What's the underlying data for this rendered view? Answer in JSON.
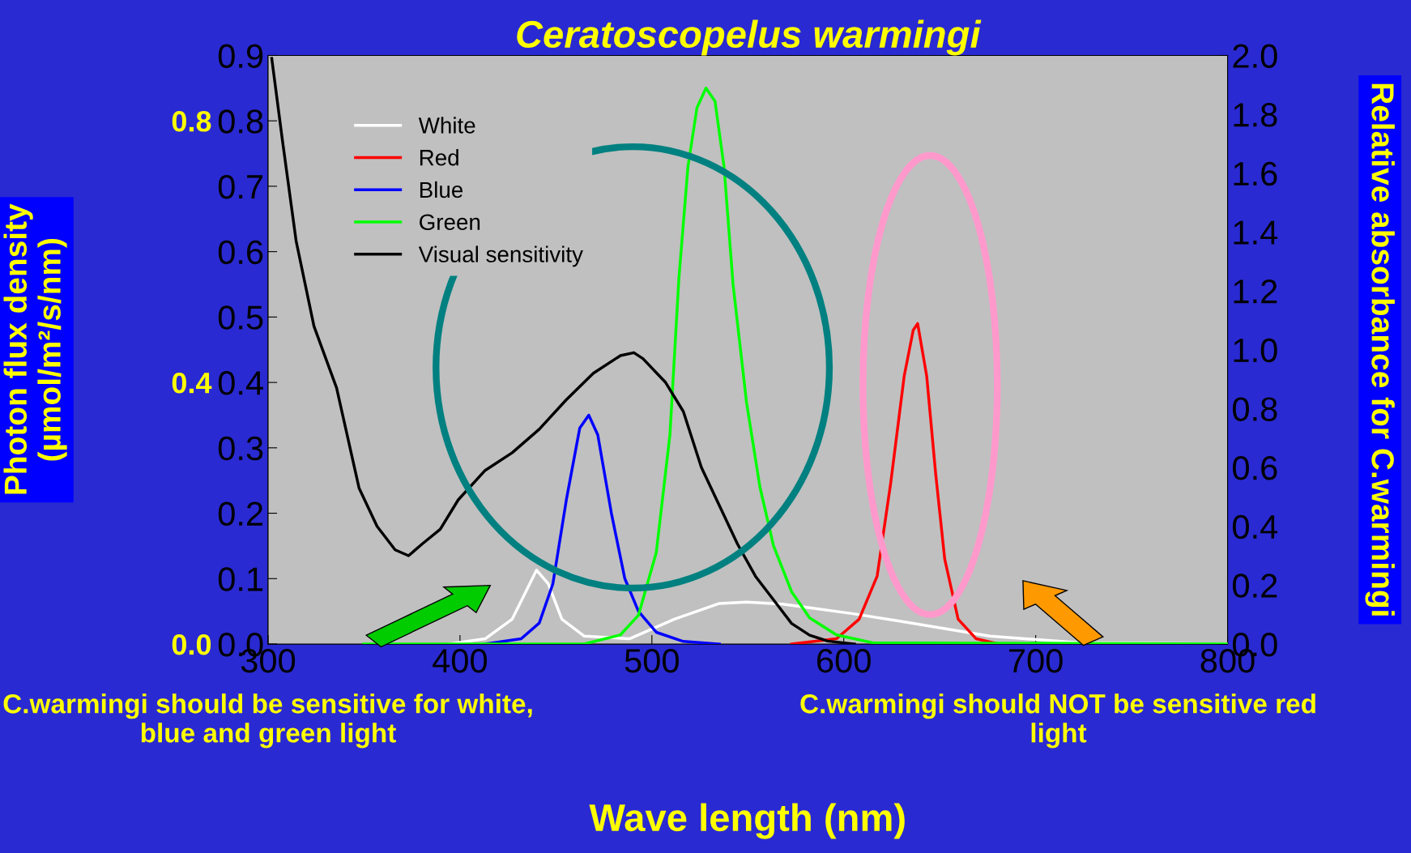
{
  "chart_data": {
    "type": "line",
    "title": "Ceratoscopelus warmingi",
    "xlabel": "Wave length (nm)",
    "ylabel": "Photon flux density (µmol/m²/s/nm)",
    "y2label": "Relative absorbance for C.warmingi",
    "xlim": [
      300,
      800
    ],
    "xticks": [
      300,
      400,
      500,
      600,
      700,
      800
    ],
    "ylim": [
      0,
      0.9
    ],
    "yticks": [
      {
        "value": 0,
        "label": "0.0"
      },
      0.1,
      0.2,
      0.3,
      0.4,
      0.5,
      0.6,
      0.7,
      0.8,
      0.9
    ],
    "y2lim": [
      0,
      2.0
    ],
    "y2ticks": [
      {
        "value": 0,
        "label": "0.0"
      },
      0.2,
      0.4,
      0.6,
      0.8,
      {
        "value": 1.0,
        "label": "1.0"
      },
      1.2,
      1.4,
      1.6,
      1.8,
      {
        "value": 2.0,
        "label": "2.0"
      }
    ],
    "y3lim": [
      0,
      0.9
    ],
    "y3ticks": [
      {
        "value": 0,
        "label": "0.0"
      },
      0.4,
      0.8
    ],
    "legend": "top left",
    "grid": false,
    "marker": "none",
    "line_style": "solid",
    "series": [
      {
        "name": "White",
        "color": "#ffffff",
        "x": [
          394.4,
          413.1,
          427.2,
          434.3,
          439.9,
          446.0,
          453.1,
          464.8,
          488.3,
          511.7,
          535.2,
          549.3,
          568.1,
          605.6,
          629.1,
          676.1,
          723.0,
          800
        ],
        "values": [
          0,
          0.008,
          0.038,
          0.08,
          0.113,
          0.092,
          0.038,
          0.012,
          0.008,
          0.038,
          0.062,
          0.064,
          0.061,
          0.046,
          0.035,
          0.012,
          0.002,
          0
        ]
      },
      {
        "name": "Red",
        "color": "#ff0000",
        "x": [
          572.8,
          596.2,
          608.0,
          617.4,
          624.4,
          631.5,
          636.2,
          638.5,
          643.2,
          647.9,
          652.6,
          659.6,
          669.0,
          680.8
        ],
        "values": [
          0,
          0.008,
          0.038,
          0.104,
          0.245,
          0.41,
          0.48,
          0.49,
          0.41,
          0.26,
          0.13,
          0.038,
          0.008,
          0
        ]
      },
      {
        "name": "Blue",
        "color": "#0000ff",
        "x": [
          413.1,
          431.9,
          441.3,
          448.4,
          455.4,
          462.4,
          467.1,
          471.8,
          478.9,
          485.9,
          493.0,
          502.3,
          516.4,
          535.2
        ],
        "values": [
          0,
          0.008,
          0.032,
          0.092,
          0.22,
          0.33,
          0.35,
          0.32,
          0.2,
          0.1,
          0.05,
          0.018,
          0.004,
          0
        ]
      },
      {
        "name": "Green",
        "color": "#00ff00",
        "x": [
          349.8,
          464.8,
          483.6,
          493.0,
          502.3,
          509.4,
          514.1,
          518.8,
          523.5,
          528.2,
          532.9,
          537.6,
          542.3,
          549.3,
          556.3,
          563.4,
          572.8,
          582.2,
          596.2,
          615.0,
          800
        ],
        "values": [
          0,
          0,
          0.014,
          0.044,
          0.14,
          0.32,
          0.56,
          0.73,
          0.82,
          0.85,
          0.83,
          0.73,
          0.55,
          0.37,
          0.24,
          0.15,
          0.08,
          0.04,
          0.014,
          0.002,
          0
        ]
      },
      {
        "name": "Visual sensitivity",
        "color": "#000000",
        "axis": "y2",
        "x": [
          301.9,
          307.5,
          314.6,
          323.9,
          335.7,
          347.4,
          356.8,
          366.2,
          373.2,
          380.3,
          389.7,
          399.1,
          413.1,
          427.2,
          441.3,
          455.4,
          469.5,
          483.6,
          490.6,
          495.3,
          507.0,
          516.4,
          525.8,
          535.2,
          544.6,
          554.0,
          563.4,
          572.8,
          582.2,
          591.5,
          605.6
        ],
        "values": [
          1.99,
          1.71,
          1.37,
          1.08,
          0.87,
          0.53,
          0.4,
          0.32,
          0.3,
          0.34,
          0.39,
          0.49,
          0.59,
          0.65,
          0.73,
          0.83,
          0.92,
          0.98,
          0.99,
          0.97,
          0.89,
          0.79,
          0.6,
          0.47,
          0.34,
          0.23,
          0.15,
          0.07,
          0.03,
          0.01,
          0
        ]
      }
    ],
    "annotations": [
      "C.warmingi should be sensitive for white, blue and green light",
      "C.warmingi should NOT be sensitive red light"
    ]
  }
}
